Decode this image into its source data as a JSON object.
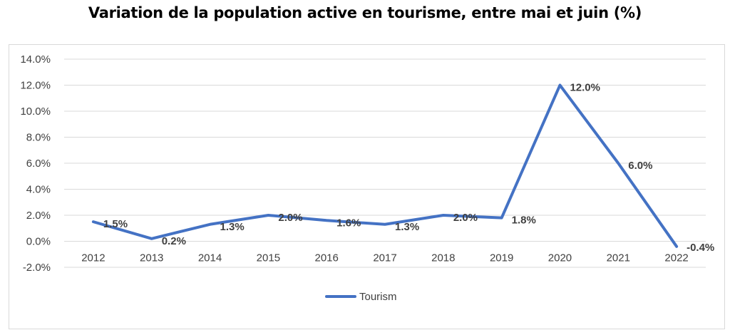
{
  "chart_data": {
    "type": "line",
    "title": "Variation de la population active en tourisme, entre mai et juin (%)",
    "xlabel": "",
    "ylabel": "",
    "categories": [
      "2012",
      "2013",
      "2014",
      "2015",
      "2016",
      "2017",
      "2018",
      "2019",
      "2020",
      "2021",
      "2022"
    ],
    "series": [
      {
        "name": "Tourism",
        "color": "#4472c4",
        "values": [
          1.5,
          0.2,
          1.3,
          2.0,
          1.6,
          1.3,
          2.0,
          1.8,
          12.0,
          6.0,
          -0.4
        ],
        "labels": [
          "1.5%",
          "0.2%",
          "1.3%",
          "2.0%",
          "1.6%",
          "1.3%",
          "2.0%",
          "1.8%",
          "12.0%",
          "6.0%",
          "-0.4%"
        ]
      }
    ],
    "ylim": [
      -2.0,
      14.0
    ],
    "y_ticks": [
      -2.0,
      0.0,
      2.0,
      4.0,
      6.0,
      8.0,
      10.0,
      12.0,
      14.0
    ],
    "y_tick_labels": [
      "-2.0%",
      "0.0%",
      "2.0%",
      "4.0%",
      "6.0%",
      "8.0%",
      "10.0%",
      "12.0%",
      "14.0%"
    ],
    "grid": true,
    "legend_position": "bottom",
    "label_color": "#404040",
    "highlight_label_color": "#ed7d31"
  }
}
